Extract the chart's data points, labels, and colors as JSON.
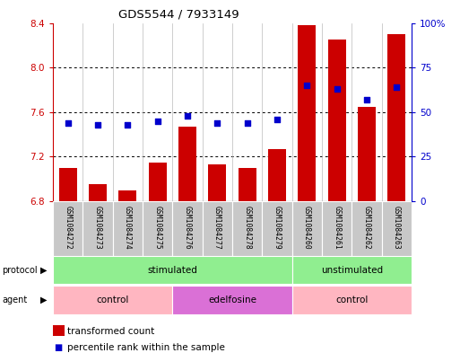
{
  "title": "GDS5544 / 7933149",
  "samples": [
    "GSM1084272",
    "GSM1084273",
    "GSM1084274",
    "GSM1084275",
    "GSM1084276",
    "GSM1084277",
    "GSM1084278",
    "GSM1084279",
    "GSM1084260",
    "GSM1084261",
    "GSM1084262",
    "GSM1084263"
  ],
  "bar_values": [
    7.1,
    6.95,
    6.9,
    7.15,
    7.47,
    7.13,
    7.1,
    7.27,
    8.38,
    8.25,
    7.65,
    8.3
  ],
  "dot_values": [
    44,
    43,
    43,
    45,
    48,
    44,
    44,
    46,
    65,
    63,
    57,
    64
  ],
  "ylim_left": [
    6.8,
    8.4
  ],
  "ylim_right": [
    0,
    100
  ],
  "yticks_left": [
    6.8,
    7.2,
    7.6,
    8.0,
    8.4
  ],
  "yticks_right": [
    0,
    25,
    50,
    75,
    100
  ],
  "ytick_labels_right": [
    "0",
    "25",
    "50",
    "75",
    "100%"
  ],
  "bar_color": "#cc0000",
  "dot_color": "#0000cc",
  "bar_bottom": 6.8,
  "protocol_groups": [
    {
      "label": "stimulated",
      "start": 0,
      "end": 8,
      "color": "#90ee90"
    },
    {
      "label": "unstimulated",
      "start": 8,
      "end": 12,
      "color": "#90ee90"
    }
  ],
  "agent_groups": [
    {
      "label": "control",
      "start": 0,
      "end": 4,
      "color": "#ffb6c1"
    },
    {
      "label": "edelfosine",
      "start": 4,
      "end": 8,
      "color": "#da70d6"
    },
    {
      "label": "control",
      "start": 8,
      "end": 12,
      "color": "#ffb6c1"
    }
  ],
  "legend_bar_label": "transformed count",
  "legend_dot_label": "percentile rank within the sample",
  "tick_color_left": "#cc0000",
  "tick_color_right": "#0000cc",
  "sample_box_color": "#c8c8c8",
  "border_color": "#888888"
}
